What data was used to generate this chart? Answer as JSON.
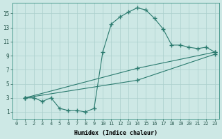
{
  "xlabel": "Humidex (Indice chaleur)",
  "ylabel": "",
  "bg_color": "#cde8e5",
  "grid_color": "#aacfcc",
  "line_color": "#2a7a6e",
  "xlim": [
    -0.5,
    23.5
  ],
  "ylim": [
    0.0,
    16.5
  ],
  "xticks": [
    0,
    1,
    2,
    3,
    4,
    5,
    6,
    7,
    8,
    9,
    10,
    11,
    12,
    13,
    14,
    15,
    16,
    17,
    18,
    19,
    20,
    21,
    22,
    23
  ],
  "yticks": [
    1,
    3,
    5,
    7,
    9,
    11,
    13,
    15
  ],
  "curve1_x": [
    1,
    2,
    3,
    4,
    5,
    6,
    7,
    8,
    9,
    10,
    11,
    12,
    13,
    14,
    15,
    16,
    17,
    18,
    19,
    20,
    21,
    22,
    23
  ],
  "curve1_y": [
    3,
    3,
    2.5,
    3,
    1.5,
    1.2,
    1.2,
    1.0,
    1.5,
    9.5,
    13.5,
    14.5,
    15.2,
    15.8,
    15.5,
    14.3,
    12.8,
    10.5,
    10.5,
    10.2,
    10.0,
    10.2,
    9.5
  ],
  "curve2_x": [
    1,
    14,
    23
  ],
  "curve2_y": [
    3,
    5.5,
    9.2
  ],
  "curve3_x": [
    1,
    14,
    23
  ],
  "curve3_y": [
    3,
    7.2,
    9.5
  ],
  "marker": "+",
  "title_fontsize": 7,
  "xlabel_fontsize": 6,
  "tick_fontsize": 5,
  "ytick_fontsize": 5.5
}
